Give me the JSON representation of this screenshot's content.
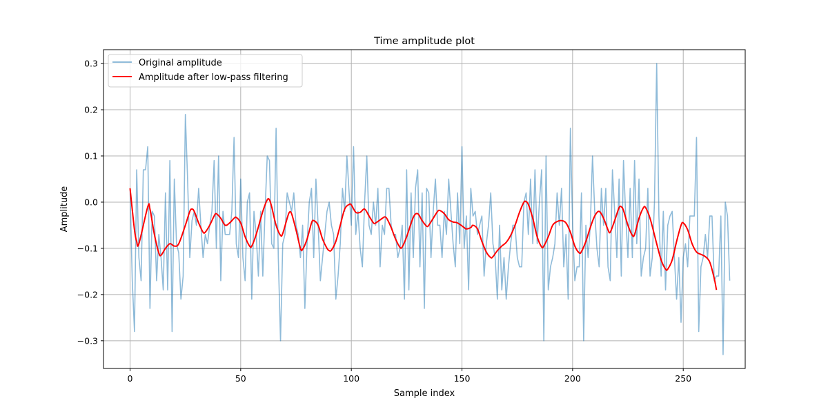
{
  "chart_data": {
    "type": "line",
    "title": "Time amplitude plot",
    "xlabel": "Sample index",
    "ylabel": "Amplitude",
    "xlim": [
      -12,
      278
    ],
    "ylim": [
      -0.36,
      0.33
    ],
    "xticks": [
      0,
      50,
      100,
      150,
      200,
      250
    ],
    "yticks": [
      -0.3,
      -0.2,
      -0.1,
      0.0,
      0.1,
      0.2,
      0.3
    ],
    "grid": true,
    "legend_position": "upper-left",
    "series": [
      {
        "name": "Original amplitude",
        "color": "#1f77b4",
        "opacity": 0.5,
        "x_start": 0,
        "values": [
          0.03,
          -0.17,
          -0.28,
          0.07,
          -0.12,
          -0.17,
          0.07,
          0.07,
          0.12,
          -0.23,
          -0.02,
          -0.03,
          -0.17,
          -0.07,
          -0.12,
          -0.19,
          0.02,
          -0.19,
          0.09,
          -0.28,
          0.05,
          -0.09,
          -0.11,
          -0.21,
          -0.16,
          0.19,
          0.05,
          -0.12,
          -0.04,
          -0.02,
          -0.05,
          0.03,
          -0.05,
          -0.12,
          -0.07,
          -0.09,
          -0.05,
          -0.02,
          0.09,
          -0.1,
          0.1,
          -0.17,
          -0.02,
          -0.07,
          -0.07,
          -0.07,
          -0.02,
          0.14,
          -0.09,
          -0.12,
          0.05,
          -0.12,
          -0.17,
          0.0,
          0.02,
          -0.21,
          -0.02,
          -0.07,
          -0.16,
          -0.02,
          -0.16,
          -0.02,
          0.1,
          0.09,
          -0.09,
          -0.1,
          0.16,
          -0.12,
          -0.3,
          -0.09,
          -0.07,
          0.02,
          0.0,
          -0.02,
          0.02,
          -0.05,
          -0.07,
          -0.12,
          -0.05,
          -0.23,
          -0.09,
          0.0,
          0.03,
          -0.12,
          0.05,
          -0.05,
          -0.17,
          -0.12,
          -0.07,
          -0.02,
          0.0,
          -0.05,
          -0.07,
          -0.21,
          -0.16,
          -0.09,
          0.03,
          -0.02,
          0.1,
          0.02,
          -0.05,
          0.12,
          -0.07,
          -0.02,
          -0.1,
          -0.14,
          0.0,
          0.1,
          -0.05,
          -0.07,
          0.0,
          -0.05,
          0.03,
          -0.14,
          -0.05,
          -0.07,
          0.03,
          0.03,
          -0.05,
          -0.07,
          -0.07,
          -0.12,
          -0.1,
          -0.05,
          -0.21,
          0.07,
          -0.19,
          0.02,
          -0.12,
          0.03,
          0.07,
          -0.14,
          0.02,
          -0.23,
          0.03,
          0.02,
          -0.12,
          -0.02,
          0.05,
          -0.05,
          -0.05,
          -0.12,
          -0.02,
          -0.07,
          0.05,
          -0.02,
          -0.09,
          -0.14,
          0.02,
          -0.09,
          0.12,
          -0.1,
          -0.03,
          -0.19,
          0.03,
          -0.03,
          -0.02,
          -0.07,
          -0.05,
          -0.03,
          -0.16,
          -0.09,
          -0.05,
          0.02,
          -0.09,
          -0.12,
          -0.21,
          -0.05,
          -0.19,
          -0.12,
          -0.21,
          -0.14,
          -0.09,
          -0.05,
          -0.05,
          -0.12,
          -0.14,
          -0.14,
          0.0,
          0.02,
          -0.07,
          0.05,
          -0.09,
          0.07,
          -0.09,
          0.0,
          0.07,
          -0.3,
          0.1,
          -0.19,
          -0.14,
          -0.12,
          -0.09,
          0.02,
          -0.05,
          0.03,
          -0.14,
          -0.07,
          -0.21,
          0.16,
          -0.05,
          -0.17,
          -0.14,
          -0.14,
          0.02,
          -0.3,
          -0.05,
          -0.12,
          -0.05,
          0.1,
          -0.02,
          -0.1,
          -0.14,
          0.03,
          -0.05,
          0.03,
          -0.14,
          -0.17,
          0.07,
          -0.02,
          -0.12,
          0.05,
          -0.16,
          0.09,
          -0.03,
          -0.12,
          0.03,
          -0.12,
          0.09,
          -0.09,
          0.05,
          -0.16,
          -0.12,
          -0.1,
          0.03,
          -0.16,
          -0.12,
          0.0,
          0.3,
          -0.03,
          -0.16,
          -0.02,
          -0.19,
          -0.05,
          -0.03,
          -0.02,
          -0.12,
          -0.21,
          -0.12,
          -0.26,
          -0.12,
          -0.09,
          -0.14,
          -0.03,
          -0.03,
          -0.03,
          0.14,
          -0.28,
          -0.14,
          -0.12,
          -0.07,
          -0.12,
          -0.03,
          -0.03,
          -0.17,
          -0.16,
          -0.16,
          -0.03,
          -0.33,
          0.0,
          -0.03,
          -0.17
        ]
      },
      {
        "name": "Amplitude after low-pass filtering",
        "color": "#ff0000",
        "opacity": 1,
        "knots": [
          [
            0,
            0.03
          ],
          [
            2,
            -0.06
          ],
          [
            3,
            -0.085
          ],
          [
            4,
            -0.09
          ],
          [
            8,
            -0.01
          ],
          [
            9,
            -0.015
          ],
          [
            11,
            -0.07
          ],
          [
            13,
            -0.11
          ],
          [
            14,
            -0.115
          ],
          [
            16,
            -0.1
          ],
          [
            18,
            -0.09
          ],
          [
            20,
            -0.095
          ],
          [
            22,
            -0.09
          ],
          [
            25,
            -0.05
          ],
          [
            27,
            -0.02
          ],
          [
            28,
            -0.015
          ],
          [
            29,
            -0.02
          ],
          [
            31,
            -0.045
          ],
          [
            33,
            -0.065
          ],
          [
            34,
            -0.065
          ],
          [
            36,
            -0.05
          ],
          [
            38,
            -0.03
          ],
          [
            39,
            -0.025
          ],
          [
            41,
            -0.035
          ],
          [
            43,
            -0.05
          ],
          [
            45,
            -0.045
          ],
          [
            47,
            -0.035
          ],
          [
            48,
            -0.033
          ],
          [
            50,
            -0.045
          ],
          [
            52,
            -0.075
          ],
          [
            54,
            -0.095
          ],
          [
            55,
            -0.095
          ],
          [
            57,
            -0.07
          ],
          [
            60,
            -0.02
          ],
          [
            62,
            0.005
          ],
          [
            63,
            0.005
          ],
          [
            64,
            -0.01
          ],
          [
            66,
            -0.05
          ],
          [
            68,
            -0.072
          ],
          [
            69,
            -0.068
          ],
          [
            71,
            -0.035
          ],
          [
            72,
            -0.022
          ],
          [
            73,
            -0.025
          ],
          [
            75,
            -0.06
          ],
          [
            77,
            -0.1
          ],
          [
            78,
            -0.102
          ],
          [
            80,
            -0.08
          ],
          [
            82,
            -0.045
          ],
          [
            83,
            -0.04
          ],
          [
            85,
            -0.05
          ],
          [
            87,
            -0.08
          ],
          [
            89,
            -0.1
          ],
          [
            90,
            -0.105
          ],
          [
            91,
            -0.104
          ],
          [
            93,
            -0.085
          ],
          [
            95,
            -0.05
          ],
          [
            97,
            -0.015
          ],
          [
            99,
            -0.005
          ],
          [
            100,
            -0.006
          ],
          [
            102,
            -0.022
          ],
          [
            104,
            -0.022
          ],
          [
            106,
            -0.015
          ],
          [
            108,
            -0.03
          ],
          [
            110,
            -0.045
          ],
          [
            111,
            -0.045
          ],
          [
            114,
            -0.035
          ],
          [
            115,
            -0.032
          ],
          [
            116,
            -0.035
          ],
          [
            118,
            -0.055
          ],
          [
            120,
            -0.08
          ],
          [
            122,
            -0.098
          ],
          [
            123,
            -0.097
          ],
          [
            125,
            -0.075
          ],
          [
            128,
            -0.033
          ],
          [
            130,
            -0.025
          ],
          [
            132,
            -0.04
          ],
          [
            134,
            -0.052
          ],
          [
            135,
            -0.05
          ],
          [
            137,
            -0.035
          ],
          [
            139,
            -0.02
          ],
          [
            140,
            -0.018
          ],
          [
            142,
            -0.025
          ],
          [
            144,
            -0.038
          ],
          [
            146,
            -0.043
          ],
          [
            148,
            -0.045
          ],
          [
            151,
            -0.055
          ],
          [
            152,
            -0.058
          ],
          [
            154,
            -0.055
          ],
          [
            155,
            -0.05
          ],
          [
            157,
            -0.058
          ],
          [
            159,
            -0.085
          ],
          [
            161,
            -0.108
          ],
          [
            163,
            -0.12
          ],
          [
            164,
            -0.118
          ],
          [
            166,
            -0.105
          ],
          [
            168,
            -0.095
          ],
          [
            170,
            -0.087
          ],
          [
            172,
            -0.072
          ],
          [
            174,
            -0.05
          ],
          [
            176,
            -0.022
          ],
          [
            178,
            0.0
          ],
          [
            179,
            0.001
          ],
          [
            180,
            -0.005
          ],
          [
            182,
            -0.035
          ],
          [
            184,
            -0.075
          ],
          [
            186,
            -0.097
          ],
          [
            187,
            -0.095
          ],
          [
            189,
            -0.075
          ],
          [
            191,
            -0.05
          ],
          [
            193,
            -0.042
          ],
          [
            195,
            -0.04
          ],
          [
            197,
            -0.045
          ],
          [
            199,
            -0.065
          ],
          [
            201,
            -0.095
          ],
          [
            203,
            -0.11
          ],
          [
            204,
            -0.107
          ],
          [
            206,
            -0.085
          ],
          [
            208,
            -0.055
          ],
          [
            210,
            -0.03
          ],
          [
            212,
            -0.02
          ],
          [
            214,
            -0.035
          ],
          [
            216,
            -0.06
          ],
          [
            217,
            -0.065
          ],
          [
            219,
            -0.04
          ],
          [
            221,
            -0.012
          ],
          [
            222,
            -0.01
          ],
          [
            223,
            -0.018
          ],
          [
            225,
            -0.05
          ],
          [
            227,
            -0.072
          ],
          [
            228,
            -0.07
          ],
          [
            230,
            -0.035
          ],
          [
            232,
            -0.012
          ],
          [
            233,
            -0.012
          ],
          [
            235,
            -0.035
          ],
          [
            238,
            -0.09
          ],
          [
            240,
            -0.125
          ],
          [
            242,
            -0.145
          ],
          [
            243,
            -0.145
          ],
          [
            245,
            -0.125
          ],
          [
            247,
            -0.085
          ],
          [
            249,
            -0.05
          ],
          [
            250,
            -0.045
          ],
          [
            252,
            -0.06
          ],
          [
            254,
            -0.09
          ],
          [
            256,
            -0.108
          ],
          [
            258,
            -0.113
          ],
          [
            260,
            -0.118
          ],
          [
            262,
            -0.13
          ],
          [
            264,
            -0.165
          ],
          [
            265,
            -0.19
          ]
        ]
      }
    ]
  }
}
